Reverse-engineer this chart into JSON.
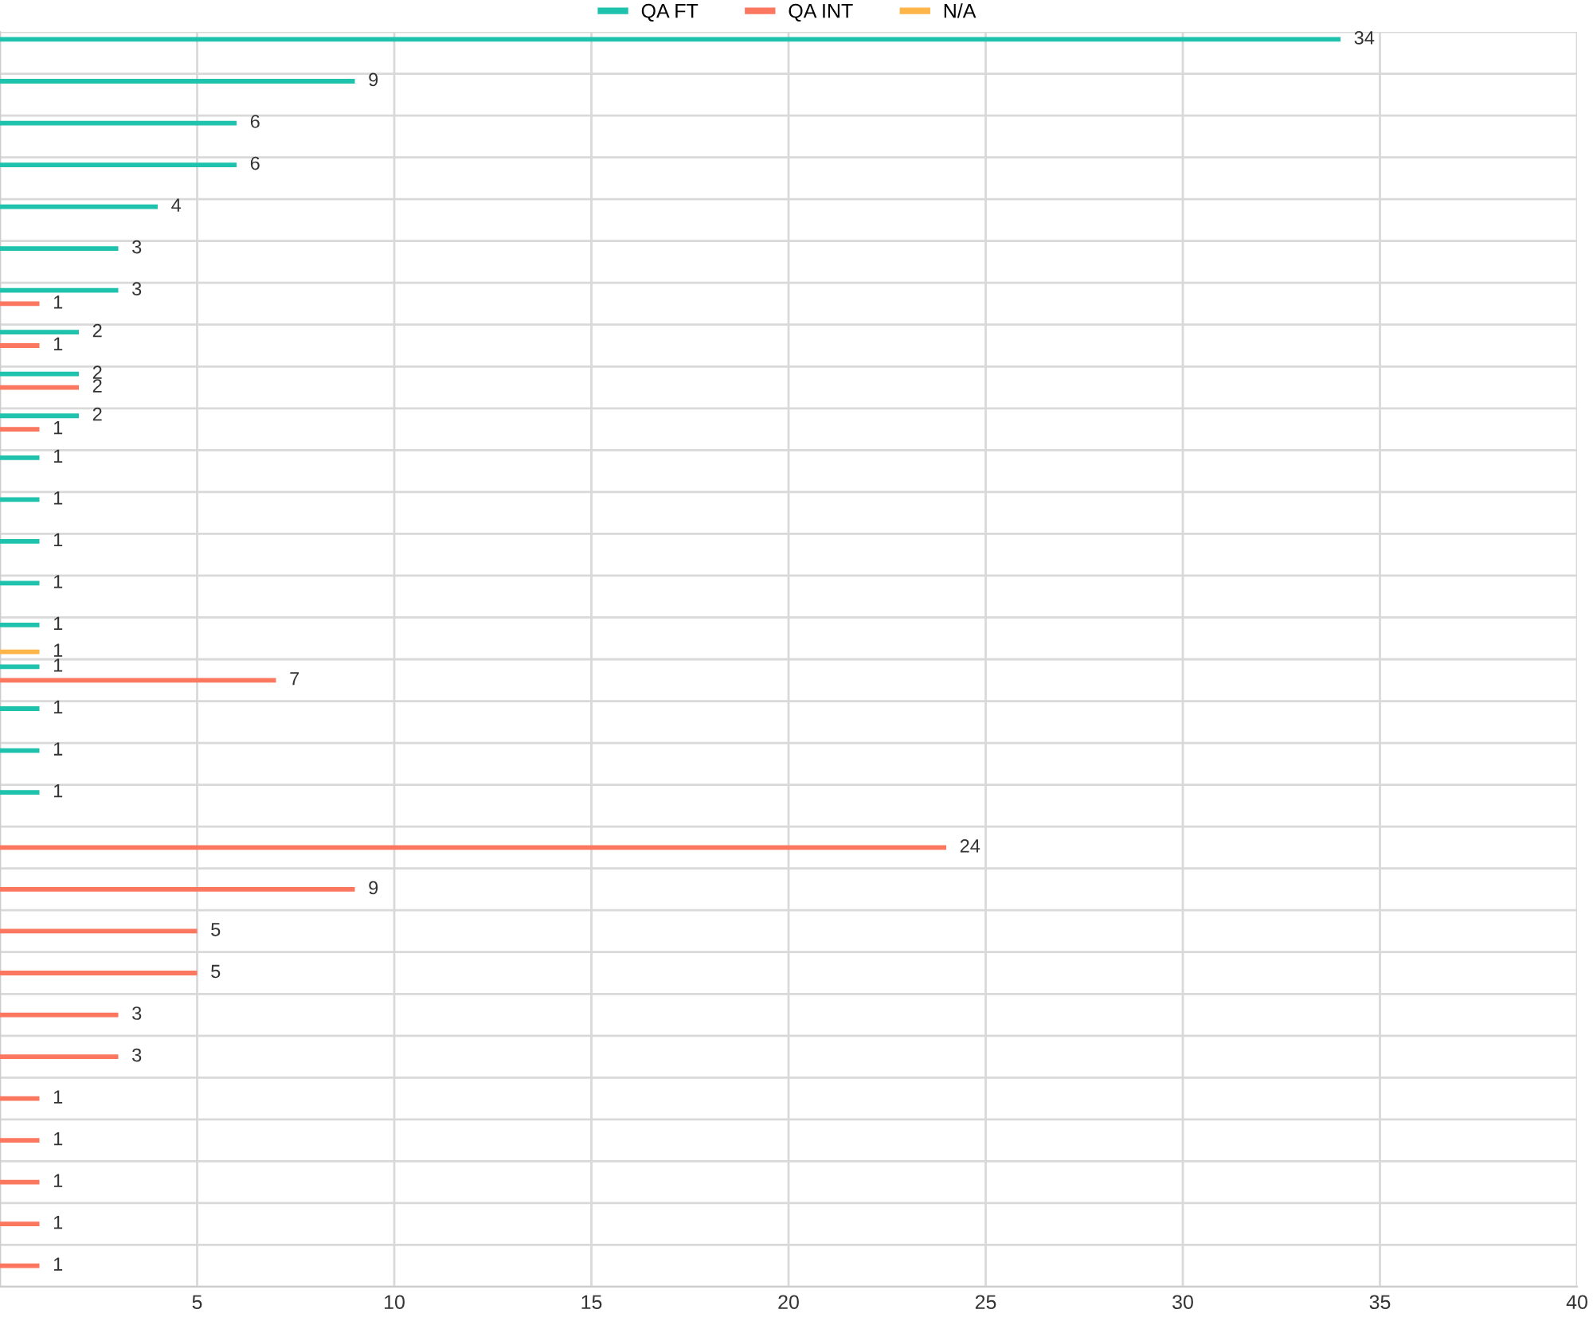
{
  "chart_data": {
    "type": "bar",
    "orientation": "horizontal",
    "categories": [
      null,
      null,
      null,
      null,
      null,
      null,
      null,
      null,
      null,
      null,
      null,
      null,
      null,
      null,
      null,
      null,
      null,
      null,
      null,
      null,
      null,
      null,
      null,
      null,
      null,
      null,
      null,
      null,
      null,
      null
    ],
    "series": [
      {
        "name": "QA FT",
        "color": "#1fc2ac",
        "values": [
          34,
          9,
          6,
          6,
          4,
          3,
          3,
          2,
          2,
          2,
          1,
          1,
          1,
          1,
          1,
          1,
          1,
          1,
          1,
          null,
          null,
          null,
          null,
          null,
          null,
          null,
          null,
          null,
          null,
          null
        ]
      },
      {
        "name": "QA INT",
        "color": "#fb7760",
        "values": [
          null,
          null,
          null,
          null,
          null,
          null,
          1,
          1,
          2,
          1,
          null,
          null,
          null,
          null,
          null,
          7,
          null,
          null,
          null,
          24,
          9,
          5,
          5,
          3,
          3,
          1,
          1,
          1,
          1,
          1
        ]
      },
      {
        "name": "N/A",
        "color": "#fdb54a",
        "values": [
          null,
          null,
          null,
          null,
          null,
          null,
          null,
          null,
          null,
          null,
          null,
          null,
          null,
          null,
          1,
          null,
          null,
          null,
          null,
          null,
          null,
          null,
          null,
          null,
          null,
          null,
          null,
          null,
          null,
          null
        ]
      }
    ],
    "xlim": [
      0,
      40
    ],
    "xticks": [
      {
        "value": 0,
        "label": null
      },
      5,
      10,
      15,
      20,
      25,
      30,
      35,
      40
    ],
    "grid": true,
    "legend": "top",
    "data_labels": true
  }
}
